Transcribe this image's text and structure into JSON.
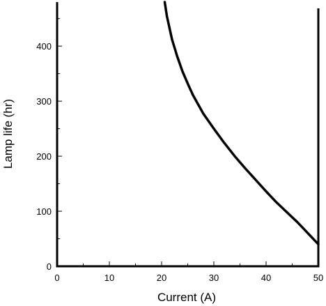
{
  "chart_data": {
    "type": "line",
    "title": "",
    "xlabel": "Current (A)",
    "ylabel": "Lamp life (hr)",
    "xlim": [
      0,
      50
    ],
    "ylim": [
      0,
      480
    ],
    "x_ticks": [
      0,
      10,
      20,
      30,
      40,
      50
    ],
    "y_ticks": [
      0,
      100,
      200,
      300,
      400
    ],
    "x_tick_labels": [
      "0",
      "10",
      "20",
      "30",
      "40",
      "50"
    ],
    "y_tick_labels": [
      "0",
      "100",
      "200",
      "300",
      "400"
    ],
    "grid": false,
    "legend": "none",
    "series": [
      {
        "color": "#000000",
        "x": [
          20.6,
          21.0,
          22.0,
          23.0,
          24.0,
          25.0,
          26.0,
          28.0,
          30.0,
          32.0,
          34.0,
          36.0,
          38.0,
          40.0,
          42.0,
          44.0,
          46.0,
          48.0,
          50.0
        ],
        "y": [
          485,
          455,
          412,
          381,
          354,
          332,
          311,
          277,
          250,
          224,
          200,
          178,
          157,
          136,
          116,
          98,
          80,
          60,
          40
        ]
      }
    ]
  }
}
